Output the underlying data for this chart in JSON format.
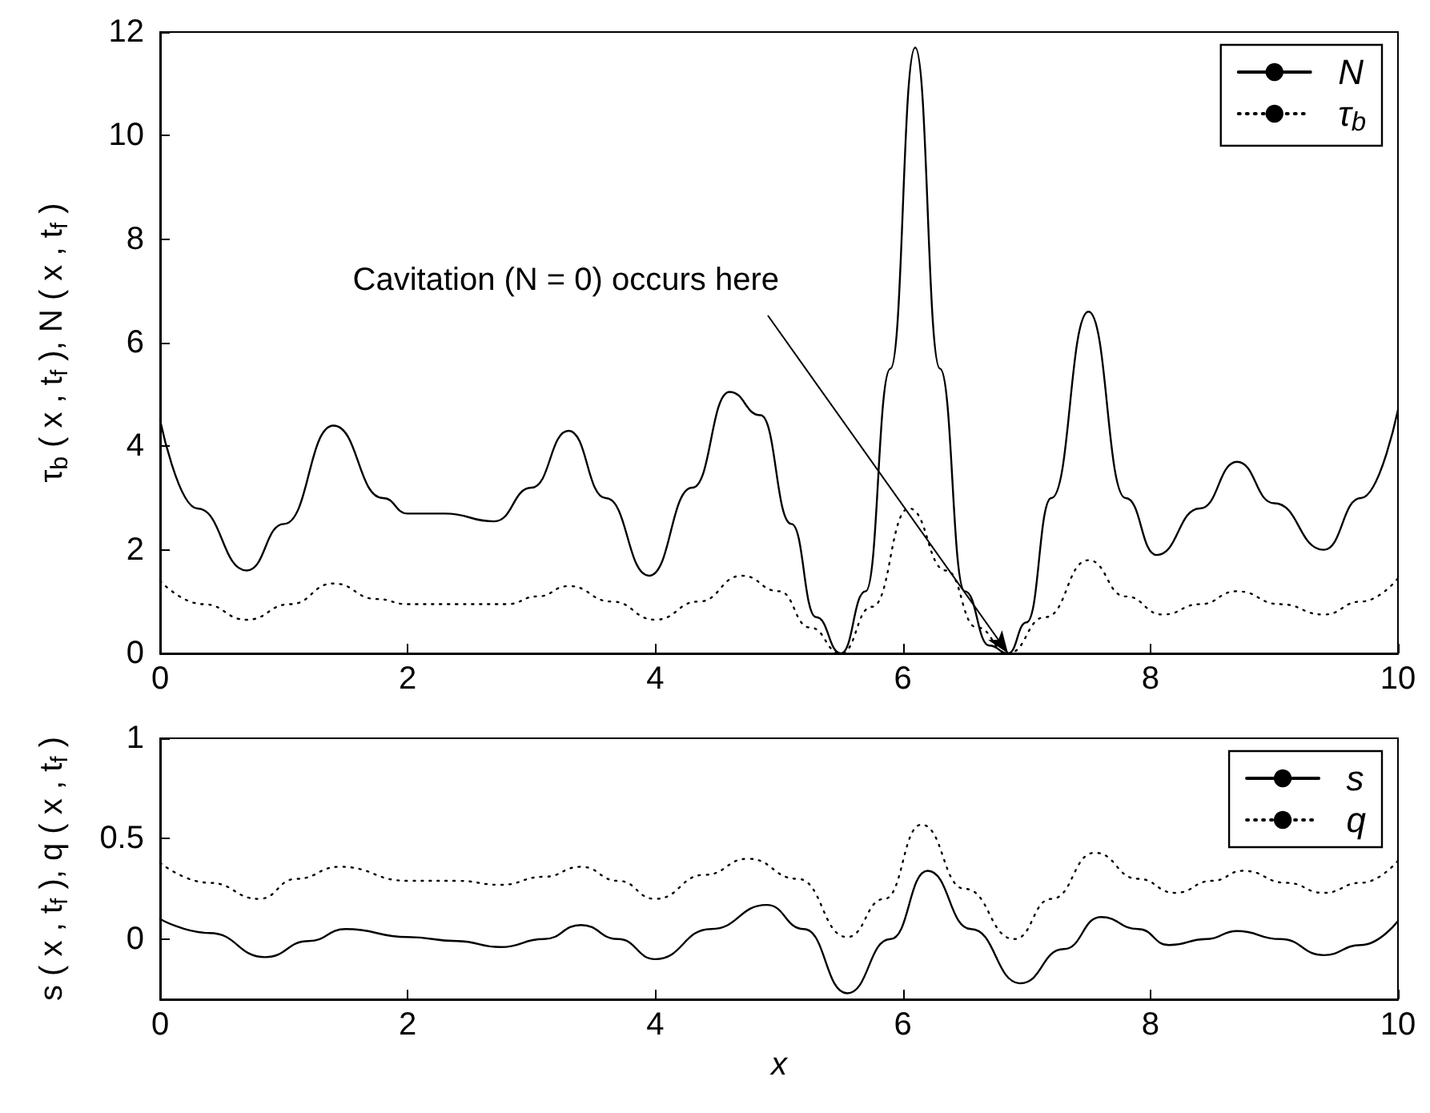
{
  "chart_data": [
    {
      "type": "line",
      "ylabel": "τ$_{b}$ ( x , t$_{f}$ ), N ( x , t$_{f}$ )",
      "xlim": [
        0,
        10
      ],
      "xticks": [
        0,
        2,
        4,
        6,
        8,
        10
      ],
      "ylim": [
        0,
        12
      ],
      "yticks": [
        0,
        2,
        4,
        6,
        8,
        10,
        12
      ],
      "grid": false,
      "legend": "top right",
      "marker": "none",
      "annotations": [
        {
          "text": "Cavitation (N = 0) occurs here",
          "x": 6.85,
          "y": 0
        }
      ],
      "series": [
        {
          "name": "N",
          "color": "#000000",
          "line_style": "solid",
          "x": [
            0,
            0.3,
            0.7,
            1.0,
            1.4,
            1.8,
            2.0,
            2.3,
            2.7,
            3.0,
            3.3,
            3.6,
            3.95,
            4.3,
            4.6,
            4.85,
            5.1,
            5.3,
            5.5,
            5.7,
            5.9,
            6.1,
            6.3,
            6.5,
            6.7,
            6.85,
            7.0,
            7.2,
            7.5,
            7.8,
            8.05,
            8.4,
            8.7,
            9.0,
            9.4,
            9.7,
            10
          ],
          "values": [
            4.5,
            2.8,
            1.6,
            2.5,
            4.4,
            3.0,
            2.7,
            2.7,
            2.55,
            3.2,
            4.3,
            3.0,
            1.5,
            3.2,
            5.05,
            4.6,
            2.5,
            0.7,
            0,
            1.2,
            5.5,
            11.7,
            5.5,
            1.2,
            0.15,
            0,
            0.6,
            3.0,
            6.6,
            3.0,
            1.9,
            2.8,
            3.7,
            2.9,
            2.0,
            3.0,
            4.7
          ]
        },
        {
          "name": "τ$_{b}$",
          "color": "#000000",
          "line_style": "dotted",
          "x": [
            0,
            0.35,
            0.7,
            1.05,
            1.4,
            1.75,
            2.0,
            2.4,
            2.8,
            3.05,
            3.3,
            3.65,
            4.0,
            4.35,
            4.7,
            5.0,
            5.25,
            5.5,
            5.75,
            6.05,
            6.35,
            6.6,
            6.85,
            7.15,
            7.5,
            7.8,
            8.1,
            8.4,
            8.7,
            9.05,
            9.4,
            9.7,
            10
          ],
          "values": [
            1.4,
            0.95,
            0.65,
            0.95,
            1.35,
            1.05,
            0.95,
            0.95,
            0.95,
            1.1,
            1.3,
            1.0,
            0.65,
            1.0,
            1.5,
            1.2,
            0.5,
            0,
            0.9,
            2.8,
            1.6,
            0.5,
            0,
            0.7,
            1.8,
            1.1,
            0.75,
            0.95,
            1.2,
            0.95,
            0.75,
            1.0,
            1.45
          ]
        }
      ]
    },
    {
      "type": "line",
      "xlabel": "x",
      "ylabel": "s ( x , t$_{f}$ ), q ( x , t$_{f}$ )",
      "xlim": [
        0,
        10
      ],
      "xticks": [
        0,
        2,
        4,
        6,
        8,
        10
      ],
      "ylim": [
        -0.3,
        1
      ],
      "yticks": [
        0,
        0.5,
        1
      ],
      "grid": false,
      "legend": "top right",
      "marker": "none",
      "series": [
        {
          "name": "s",
          "color": "#000000",
          "line_style": "solid",
          "x": [
            0,
            0.4,
            0.85,
            1.2,
            1.5,
            2.0,
            2.4,
            2.75,
            3.1,
            3.4,
            3.7,
            4.0,
            4.45,
            4.9,
            5.2,
            5.55,
            5.9,
            6.2,
            6.55,
            6.95,
            7.3,
            7.6,
            7.9,
            8.15,
            8.45,
            8.7,
            9.05,
            9.4,
            9.7,
            10
          ],
          "values": [
            0.1,
            0.03,
            -0.09,
            -0.01,
            0.05,
            0.01,
            -0.01,
            -0.04,
            0.0,
            0.07,
            0.0,
            -0.1,
            0.05,
            0.17,
            0.05,
            -0.27,
            0.0,
            0.34,
            0.05,
            -0.22,
            -0.05,
            0.11,
            0.05,
            -0.03,
            0.0,
            0.04,
            0.0,
            -0.08,
            -0.03,
            0.09
          ]
        },
        {
          "name": "q",
          "color": "#000000",
          "line_style": "dotted",
          "x": [
            0,
            0.4,
            0.8,
            1.1,
            1.45,
            2.0,
            2.4,
            2.75,
            3.1,
            3.4,
            3.7,
            4.0,
            4.4,
            4.75,
            5.15,
            5.55,
            5.85,
            6.15,
            6.5,
            6.9,
            7.2,
            7.55,
            7.9,
            8.2,
            8.5,
            8.75,
            9.1,
            9.4,
            9.7,
            10
          ],
          "values": [
            0.38,
            0.28,
            0.2,
            0.3,
            0.36,
            0.29,
            0.29,
            0.27,
            0.31,
            0.36,
            0.29,
            0.2,
            0.32,
            0.4,
            0.3,
            0.01,
            0.2,
            0.57,
            0.25,
            0.0,
            0.2,
            0.43,
            0.3,
            0.23,
            0.29,
            0.34,
            0.28,
            0.23,
            0.28,
            0.39
          ]
        }
      ]
    }
  ]
}
